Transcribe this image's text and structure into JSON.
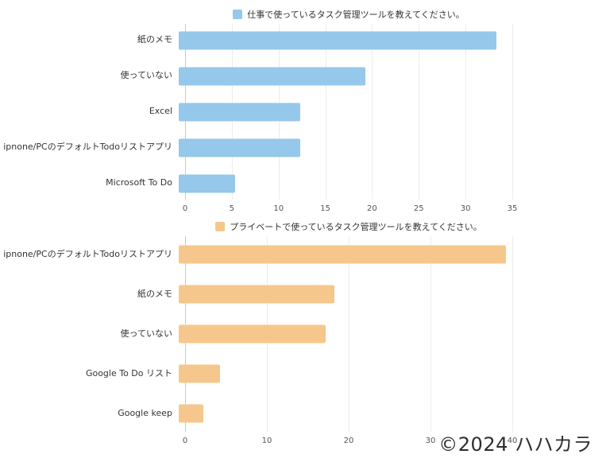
{
  "chart_data": [
    {
      "type": "bar",
      "orientation": "horizontal",
      "title": "仕事で使っているタスク管理ツールを教えてください。",
      "categories": [
        "紙のメモ",
        "使っていない",
        "Excel",
        "ipnone/PCのデフォルトTodoリストアプリ",
        "Microsoft To Do"
      ],
      "values": [
        34,
        20,
        13,
        13,
        6
      ],
      "xlim": [
        0,
        35
      ],
      "ticks": [
        0,
        5,
        10,
        15,
        20,
        25,
        30,
        35
      ],
      "color": "#95C8EA",
      "grid": true,
      "legend_position": "top"
    },
    {
      "type": "bar",
      "orientation": "horizontal",
      "title": "プライベートで使っているタスク管理ツールを教えてください。",
      "categories": [
        "ipnone/PCのデフォルトTodoリストアプリ",
        "紙のメモ",
        "使っていない",
        "Google To Do リスト",
        "Google keep"
      ],
      "values": [
        40,
        19,
        18,
        5,
        3
      ],
      "xlim": [
        0,
        40
      ],
      "ticks": [
        0,
        10,
        20,
        30,
        40
      ],
      "color": "#F6C78C",
      "grid": true,
      "legend_position": "top"
    }
  ],
  "footer": {
    "copyright": "©2024 ハハカラ"
  }
}
